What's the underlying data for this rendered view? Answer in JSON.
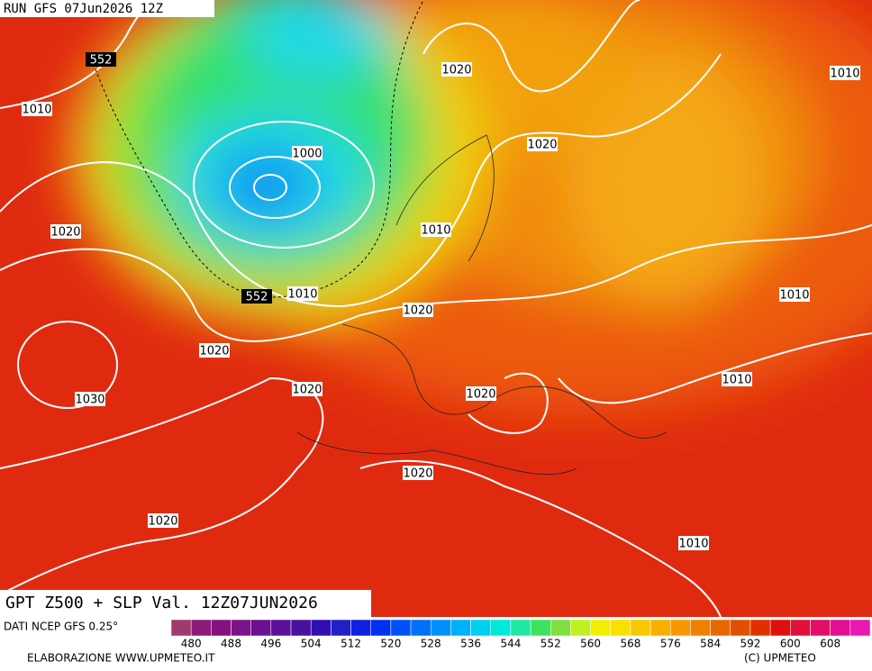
{
  "header": {
    "run": "RUN GFS 07Jun2026 12Z"
  },
  "map": {
    "title": "GPT Z500 + SLP Val. 12Z07JUN2026",
    "contour_labels": [
      "552",
      "1010",
      "1020",
      "1010",
      "1000",
      "1020",
      "1020",
      "1010",
      "552",
      "1010",
      "1020",
      "1010",
      "1020",
      "1030",
      "1020",
      "1020",
      "1010",
      "1020",
      "1020",
      "1010"
    ]
  },
  "legend": {
    "source": "DATI NCEP GFS 0.25°",
    "ticks": [
      480,
      488,
      496,
      504,
      512,
      520,
      528,
      536,
      544,
      552,
      560,
      568,
      576,
      584,
      592,
      600,
      608
    ],
    "colors": [
      "#9e3a6e",
      "#8e1a78",
      "#86107f",
      "#7a1488",
      "#6a1090",
      "#5a1098",
      "#4a10a0",
      "#3010b0",
      "#2020c8",
      "#1020e0",
      "#0030f0",
      "#0050f8",
      "#0070f8",
      "#0090f8",
      "#00b0f8",
      "#00d0f0",
      "#00e8d8",
      "#20e8a0",
      "#40e060",
      "#80e040",
      "#c0f020",
      "#f0f000",
      "#f8e000",
      "#f8c800",
      "#f8b000",
      "#f89800",
      "#f08000",
      "#e86800",
      "#e05000",
      "#e03000",
      "#e01010",
      "#e0103c",
      "#e01068",
      "#e01090",
      "#e818b0"
    ]
  },
  "footer": {
    "credit": "ELABORAZIONE WWW.UPMETEO.IT",
    "copyright": "(C) UPMETEO"
  }
}
